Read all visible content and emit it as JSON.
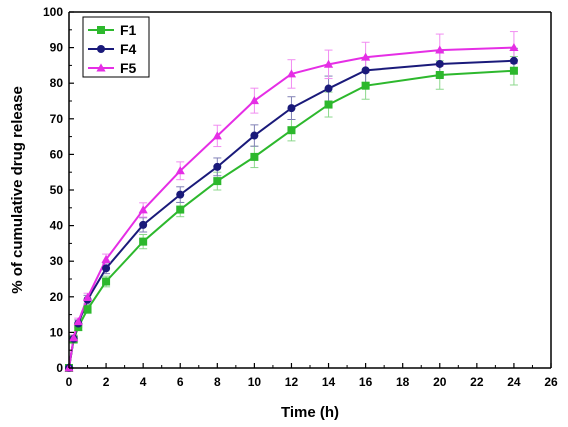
{
  "chart_data": {
    "type": "line",
    "title": "",
    "xlabel": "Time (h)",
    "ylabel": "% of cumulative drug release",
    "xlim": [
      0,
      26
    ],
    "ylim": [
      0,
      100
    ],
    "xticks": [
      0,
      2,
      4,
      6,
      8,
      10,
      12,
      14,
      16,
      18,
      20,
      22,
      24,
      26
    ],
    "yticks": [
      0,
      10,
      20,
      30,
      40,
      50,
      60,
      70,
      80,
      90,
      100
    ],
    "xtick_labels": [
      "0",
      "2",
      "4",
      "6",
      "8",
      "10",
      "12",
      "14",
      "16",
      "18",
      "20",
      "22",
      "24",
      "26"
    ],
    "ytick_labels": [
      "0",
      "10",
      "20",
      "30",
      "40",
      "50",
      "60",
      "70",
      "80",
      "90",
      "100"
    ],
    "x": [
      0,
      0.25,
      0.5,
      1,
      2,
      4,
      6,
      8,
      10,
      12,
      14,
      16,
      20,
      24
    ],
    "grid": false,
    "legend_position": "top-left",
    "series": [
      {
        "name": "F1",
        "color": "#2db82d",
        "marker": "square",
        "values": [
          0,
          8,
          11.5,
          16.5,
          24.3,
          35.5,
          44.5,
          52.5,
          59.3,
          66.8,
          74,
          79.3,
          82.3,
          83.5
        ],
        "errors": [
          0,
          0.8,
          1,
          1.2,
          1.5,
          2,
          2,
          2.5,
          3,
          3,
          3.5,
          3.8,
          4,
          4
        ]
      },
      {
        "name": "F4",
        "color": "#1a1a7a",
        "marker": "circle",
        "values": [
          0,
          8.2,
          12.5,
          19.2,
          28,
          40.2,
          48.7,
          56.5,
          65.3,
          73,
          78.5,
          83.6,
          85.4,
          86.3
        ],
        "errors": [
          0,
          0.8,
          1,
          1.2,
          1.5,
          2,
          2.2,
          2.5,
          3,
          3.2,
          3.5,
          3.5,
          3.5,
          3.5
        ]
      },
      {
        "name": "F5",
        "color": "#e52ee5",
        "marker": "triangle",
        "values": [
          0,
          8.5,
          13,
          19.8,
          30.5,
          44.4,
          55.4,
          65.2,
          75.1,
          82.6,
          85.3,
          87.3,
          89.3,
          90
        ],
        "errors": [
          0,
          0.8,
          1,
          1.2,
          1.5,
          2,
          2.5,
          3,
          3.5,
          4,
          4,
          4.2,
          4.5,
          4.5
        ]
      }
    ]
  }
}
